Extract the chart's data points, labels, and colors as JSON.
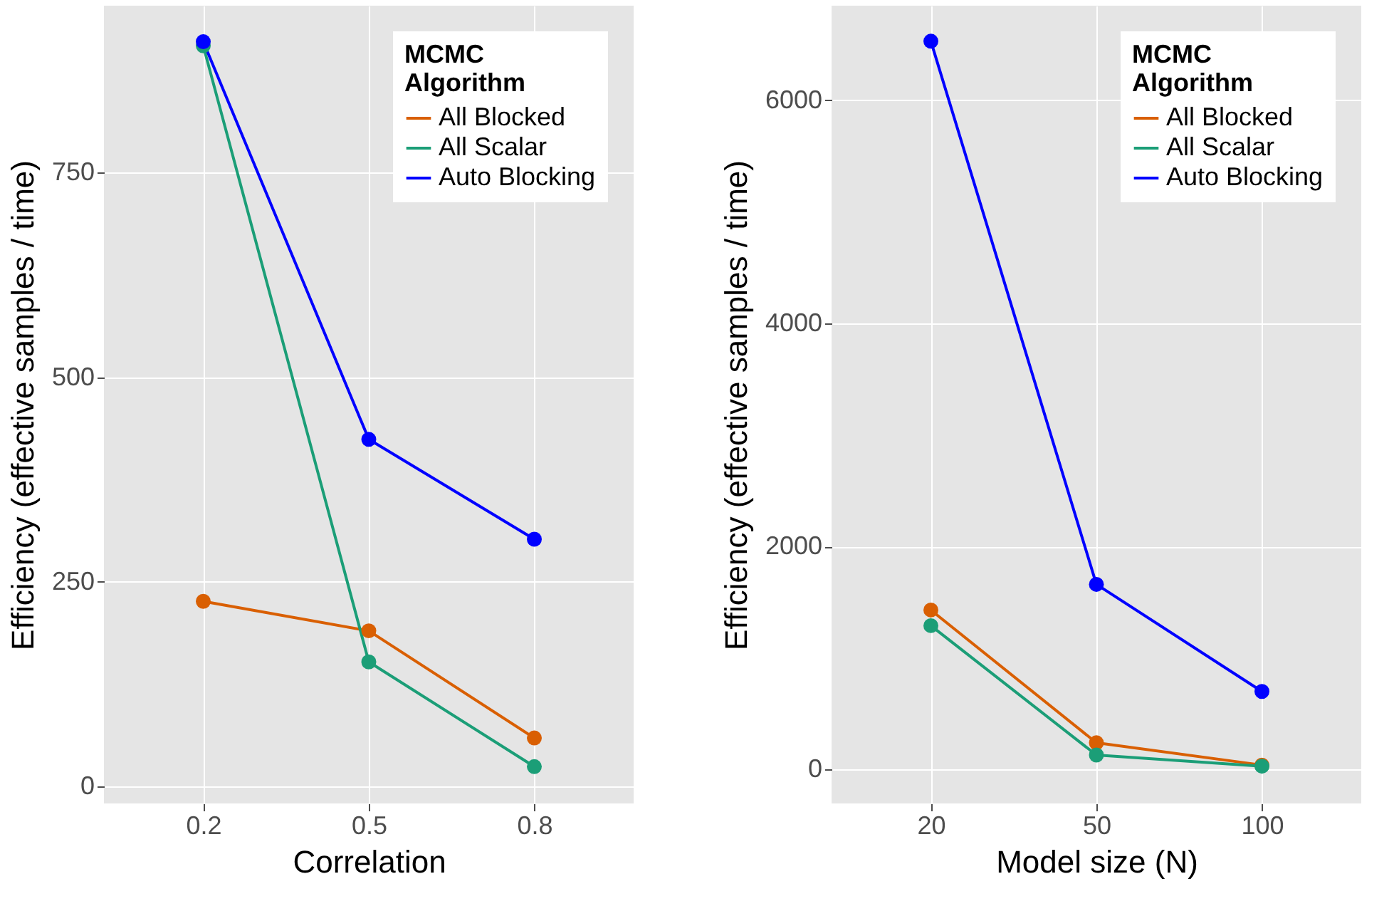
{
  "chart_data": [
    {
      "type": "line",
      "xlabel": "Correlation",
      "ylabel": "Efficiency (effective samples / time)",
      "legend_title": "MCMC Algorithm",
      "legend": "top right",
      "grid": true,
      "marker": "circle",
      "line_style": "solid",
      "categories": [
        "0.2",
        "0.5",
        "0.8"
      ],
      "ylim": [
        -21,
        954
      ],
      "yticks": [
        0,
        250,
        500,
        750
      ],
      "series": [
        {
          "name": "All Blocked",
          "color": "#d95f02",
          "values": [
            226,
            190,
            59
          ]
        },
        {
          "name": "All Scalar",
          "color": "#1b9e77",
          "values": [
            905,
            152,
            24
          ]
        },
        {
          "name": "Auto Blocking",
          "color": "#0000ff",
          "values": [
            910,
            424,
            302
          ]
        }
      ]
    },
    {
      "type": "line",
      "xlabel": "Model size (N)",
      "ylabel": "Efficiency (effective samples / time)",
      "legend_title": "MCMC Algorithm",
      "legend": "top right",
      "grid": true,
      "marker": "circle",
      "line_style": "solid",
      "categories": [
        "20",
        "50",
        "100"
      ],
      "ylim": [
        -304,
        6848
      ],
      "yticks": [
        0,
        2000,
        4000,
        6000
      ],
      "series": [
        {
          "name": "All Blocked",
          "color": "#d95f02",
          "values": [
            1430,
            240,
            40
          ]
        },
        {
          "name": "All Scalar",
          "color": "#1b9e77",
          "values": [
            1290,
            130,
            30
          ]
        },
        {
          "name": "Auto Blocking",
          "color": "#0000ff",
          "values": [
            6530,
            1660,
            700
          ]
        }
      ]
    }
  ]
}
